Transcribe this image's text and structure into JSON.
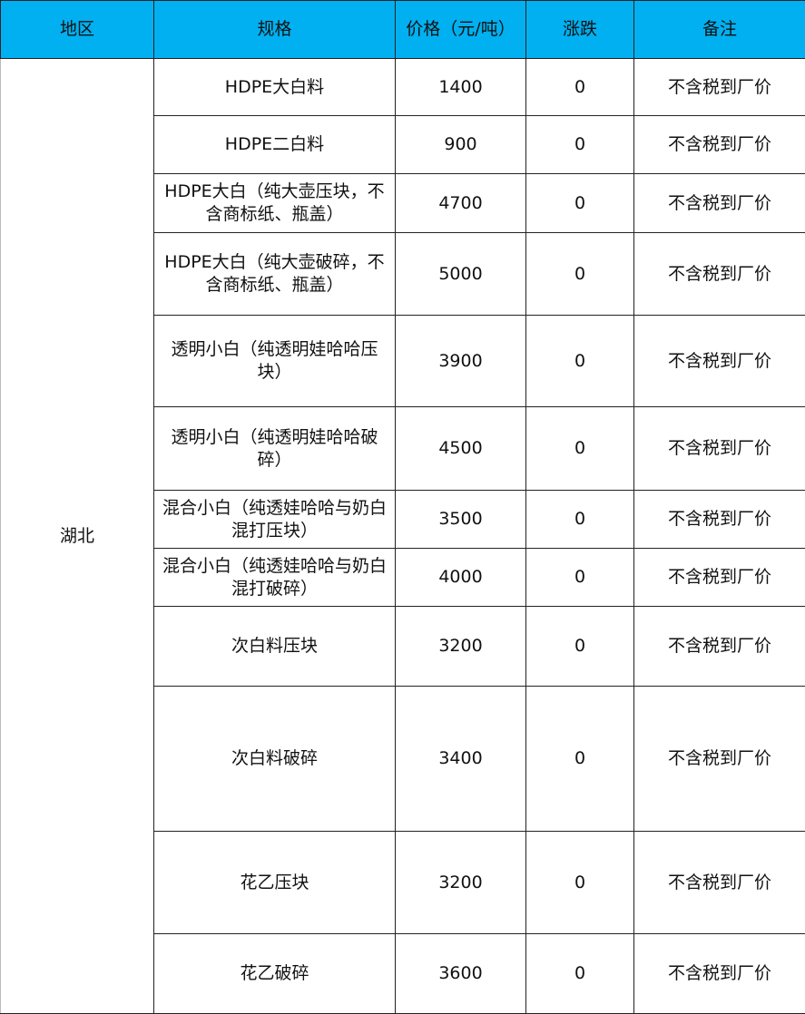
{
  "header": {
    "region": "地区",
    "spec": "规格",
    "price": "价格（元/吨）",
    "change": "涨跌",
    "note": "备注"
  },
  "colors": {
    "header_bg": "#00B0F0"
  },
  "region": "湖北",
  "rows": [
    {
      "spec": "HDPE大白料",
      "price": "1400",
      "change": "0",
      "note": "不含税到厂价"
    },
    {
      "spec": "HDPE二白料",
      "price": "900",
      "change": "0",
      "note": "不含税到厂价"
    },
    {
      "spec": "HDPE大白（纯大壶压块，不含商标纸、瓶盖）",
      "price": "4700",
      "change": "0",
      "note": "不含税到厂价"
    },
    {
      "spec": "HDPE大白（纯大壶破碎，不含商标纸、瓶盖）",
      "price": "5000",
      "change": "0",
      "note": "不含税到厂价"
    },
    {
      "spec": "透明小白（纯透明娃哈哈压块）",
      "price": "3900",
      "change": "0",
      "note": "不含税到厂价"
    },
    {
      "spec": "透明小白（纯透明娃哈哈破碎）",
      "price": "4500",
      "change": "0",
      "note": "不含税到厂价"
    },
    {
      "spec": "混合小白（纯透娃哈哈与奶白混打压块）",
      "price": "3500",
      "change": "0",
      "note": "不含税到厂价"
    },
    {
      "spec": "混合小白（纯透娃哈哈与奶白混打破碎）",
      "price": "4000",
      "change": "0",
      "note": "不含税到厂价"
    },
    {
      "spec": "次白料压块",
      "price": "3200",
      "change": "0",
      "note": "不含税到厂价"
    },
    {
      "spec": "次白料破碎",
      "price": "3400",
      "change": "0",
      "note": "不含税到厂价"
    },
    {
      "spec": "花乙压块",
      "price": "3200",
      "change": "0",
      "note": "不含税到厂价"
    },
    {
      "spec": "花乙破碎",
      "price": "3600",
      "change": "0",
      "note": "不含税到厂价"
    }
  ]
}
